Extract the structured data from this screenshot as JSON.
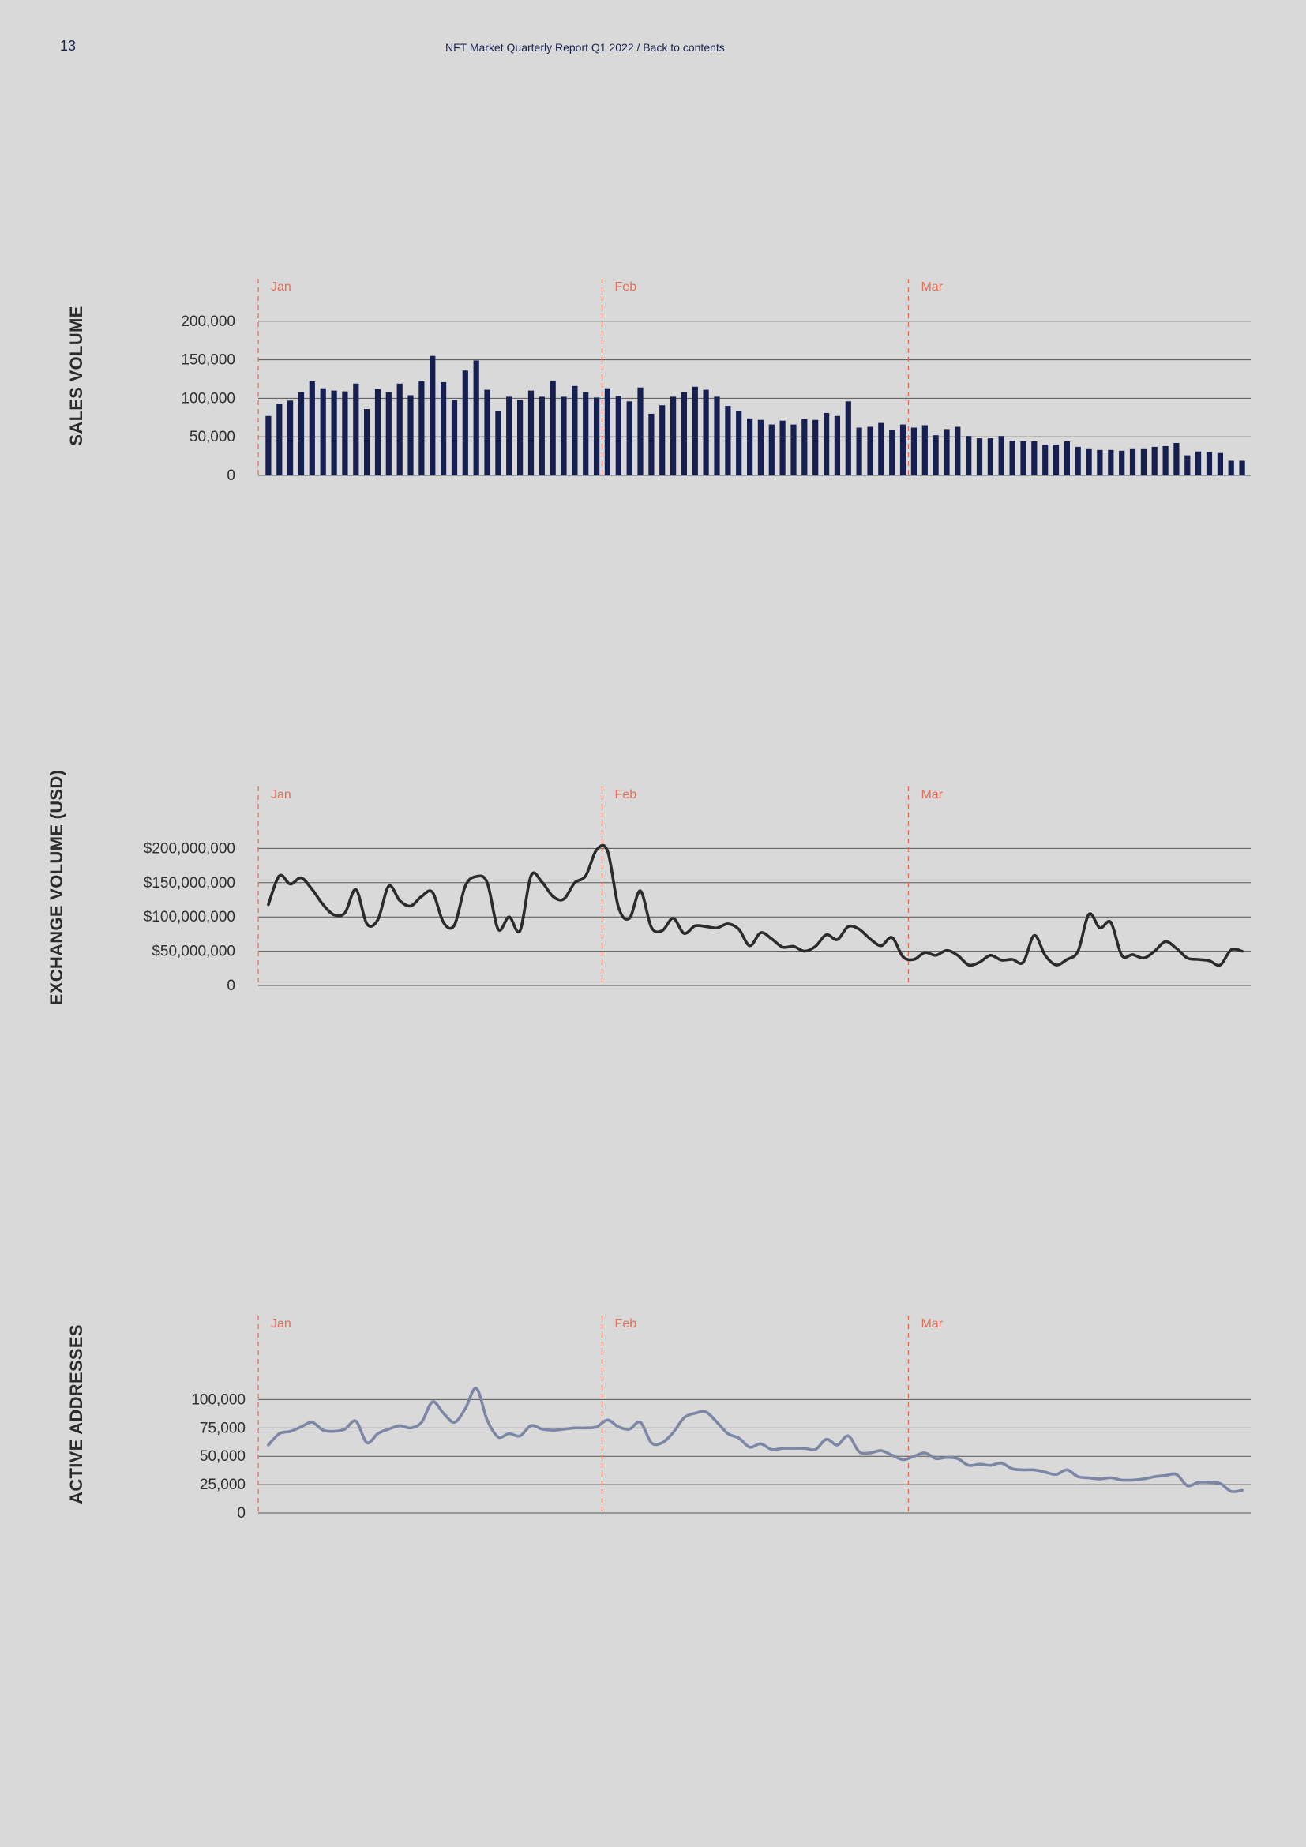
{
  "header": {
    "page_number": "13",
    "running_head": "NFT Market Quarterly Report Q1 2022 / Back to contents"
  },
  "colors": {
    "bars": "#152051",
    "exchange_line": "#2b2b2b",
    "addresses_line": "#7c86a5",
    "month_marker": "#e0705a",
    "grid": "#555555"
  },
  "chart_data": [
    {
      "type": "bar",
      "title": "SALES VOLUME",
      "months": [
        "Jan",
        "Feb",
        "Mar"
      ],
      "month_start_days": [
        1,
        32,
        60
      ],
      "ylim": [
        0,
        210000
      ],
      "yticks": [
        0,
        50000,
        100000,
        150000,
        200000
      ],
      "ytick_labels": [
        "0",
        "50,000",
        "100,000",
        "150,000",
        "200,000"
      ],
      "x": [
        1,
        2,
        3,
        4,
        5,
        6,
        7,
        8,
        9,
        10,
        11,
        12,
        13,
        14,
        15,
        16,
        17,
        18,
        19,
        20,
        21,
        22,
        23,
        24,
        25,
        26,
        27,
        28,
        29,
        30,
        31,
        32,
        33,
        34,
        35,
        36,
        37,
        38,
        39,
        40,
        41,
        42,
        43,
        44,
        45,
        46,
        47,
        48,
        49,
        50,
        51,
        52,
        53,
        54,
        55,
        56,
        57,
        58,
        59,
        60,
        61,
        62,
        63,
        64,
        65,
        66,
        67,
        68,
        69,
        70,
        71,
        72,
        73,
        74,
        75,
        76,
        77,
        78,
        79,
        80,
        81,
        82,
        83,
        84,
        85,
        86,
        87,
        88,
        89,
        90
      ],
      "values": [
        77000,
        93000,
        97000,
        108000,
        122000,
        113000,
        110000,
        109000,
        119000,
        86000,
        112000,
        108000,
        119000,
        104000,
        122000,
        155000,
        121000,
        98000,
        136000,
        149000,
        111000,
        84000,
        102000,
        98000,
        110000,
        102000,
        123000,
        102000,
        116000,
        108000,
        101000,
        113000,
        103000,
        96000,
        114000,
        80000,
        91000,
        102000,
        108000,
        115000,
        111000,
        102000,
        90000,
        84000,
        74000,
        72000,
        66000,
        71000,
        66000,
        73000,
        72000,
        81000,
        77000,
        96000,
        62000,
        63000,
        68000,
        59000,
        66000,
        62000,
        65000,
        52000,
        60000,
        63000,
        51000,
        48000,
        48000,
        51000,
        45000,
        44000,
        44000,
        40000,
        40000,
        44000,
        37000,
        35000,
        33000,
        33000,
        32000,
        35000,
        35000,
        37000,
        38000,
        42000,
        26000,
        31000,
        30000,
        29000,
        19000,
        19000
      ]
    },
    {
      "type": "line",
      "title": "EXCHANGE VOLUME (USD)",
      "months": [
        "Jan",
        "Feb",
        "Mar"
      ],
      "month_start_days": [
        1,
        32,
        60
      ],
      "ylim": [
        0,
        250000000
      ],
      "yticks": [
        0,
        50000000,
        100000000,
        150000000,
        200000000
      ],
      "ytick_labels": [
        "0",
        "$50,000,000",
        "$100,000,000",
        "$150,000,000",
        "$200,000,000"
      ],
      "x": [
        1,
        2,
        3,
        4,
        5,
        6,
        7,
        8,
        9,
        10,
        11,
        12,
        13,
        14,
        15,
        16,
        17,
        18,
        19,
        20,
        21,
        22,
        23,
        24,
        25,
        26,
        27,
        28,
        29,
        30,
        31,
        32,
        33,
        34,
        35,
        36,
        37,
        38,
        39,
        40,
        41,
        42,
        43,
        44,
        45,
        46,
        47,
        48,
        49,
        50,
        51,
        52,
        53,
        54,
        55,
        56,
        57,
        58,
        59,
        60,
        61,
        62,
        63,
        64,
        65,
        66,
        67,
        68,
        69,
        70,
        71,
        72,
        73,
        74,
        75,
        76,
        77,
        78,
        79,
        80,
        81,
        82,
        83,
        84,
        85,
        86,
        87,
        88,
        89,
        90
      ],
      "y": [
        118000000,
        160000000,
        148000000,
        157000000,
        140000000,
        118000000,
        103000000,
        106000000,
        140000000,
        90000000,
        96000000,
        145000000,
        124000000,
        116000000,
        130000000,
        136000000,
        92000000,
        88000000,
        145000000,
        159000000,
        150000000,
        82000000,
        100000000,
        80000000,
        160000000,
        151000000,
        130000000,
        126000000,
        150000000,
        160000000,
        198000000,
        196000000,
        114000000,
        98000000,
        138000000,
        85000000,
        80000000,
        98000000,
        76000000,
        87000000,
        86000000,
        84000000,
        90000000,
        82000000,
        58000000,
        77000000,
        68000000,
        56000000,
        57000000,
        50000000,
        57000000,
        74000000,
        67000000,
        86000000,
        82000000,
        68000000,
        58000000,
        70000000,
        42000000,
        38000000,
        48000000,
        44000000,
        51000000,
        44000000,
        30000000,
        34000000,
        44000000,
        37000000,
        38000000,
        34000000,
        73000000,
        44000000,
        30000000,
        38000000,
        50000000,
        104000000,
        84000000,
        92000000,
        44000000,
        45000000,
        40000000,
        50000000,
        64000000,
        54000000,
        40000000,
        38000000,
        36000000,
        30000000,
        52000000,
        50000000
      ]
    },
    {
      "type": "line",
      "title": "ACTIVE ADDRESSES",
      "months": [
        "Jan",
        "Feb",
        "Mar"
      ],
      "month_start_days": [
        1,
        32,
        60
      ],
      "ylim": [
        0,
        140000
      ],
      "yticks": [
        0,
        25000,
        50000,
        75000,
        100000
      ],
      "ytick_labels": [
        "0",
        "25,000",
        "50,000",
        "75,000",
        "100,000"
      ],
      "x": [
        1,
        2,
        3,
        4,
        5,
        6,
        7,
        8,
        9,
        10,
        11,
        12,
        13,
        14,
        15,
        16,
        17,
        18,
        19,
        20,
        21,
        22,
        23,
        24,
        25,
        26,
        27,
        28,
        29,
        30,
        31,
        32,
        33,
        34,
        35,
        36,
        37,
        38,
        39,
        40,
        41,
        42,
        43,
        44,
        45,
        46,
        47,
        48,
        49,
        50,
        51,
        52,
        53,
        54,
        55,
        56,
        57,
        58,
        59,
        60,
        61,
        62,
        63,
        64,
        65,
        66,
        67,
        68,
        69,
        70,
        71,
        72,
        73,
        74,
        75,
        76,
        77,
        78,
        79,
        80,
        81,
        82,
        83,
        84,
        85,
        86,
        87,
        88,
        89,
        90
      ],
      "y": [
        60000,
        70000,
        72000,
        76000,
        80000,
        73000,
        72000,
        74000,
        81000,
        62000,
        70000,
        74000,
        77000,
        75000,
        80000,
        98000,
        88000,
        80000,
        92000,
        110000,
        82000,
        67000,
        70000,
        68000,
        77000,
        74000,
        73000,
        74000,
        75000,
        75000,
        76000,
        82000,
        76000,
        74000,
        80000,
        62000,
        62000,
        71000,
        84000,
        88000,
        89000,
        80000,
        70000,
        66000,
        58000,
        61000,
        56000,
        57000,
        57000,
        57000,
        56000,
        65000,
        60000,
        68000,
        54000,
        53000,
        55000,
        51000,
        47000,
        50000,
        53000,
        48000,
        49000,
        48000,
        42000,
        43000,
        42000,
        44000,
        39000,
        38000,
        38000,
        36000,
        34000,
        38000,
        32000,
        31000,
        30000,
        31000,
        29000,
        29000,
        30000,
        32000,
        33000,
        34000,
        24000,
        27000,
        27000,
        26000,
        19000,
        20000
      ]
    }
  ]
}
